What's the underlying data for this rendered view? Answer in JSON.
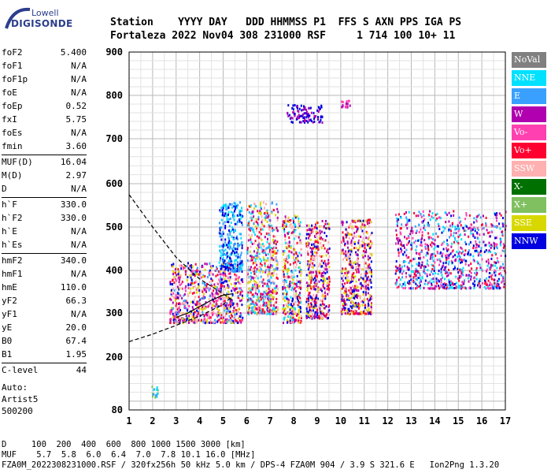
{
  "logo": {
    "line1": "Lowell",
    "line2": "DIGISONDE"
  },
  "header": {
    "line1": "Station    YYYY DAY   DDD HHMMSS P1  FFS S AXN PPS IGA PS",
    "line2": "Fortaleza 2022 Nov04 308 231000 RSF     1 714 100 10+ 11"
  },
  "params": [
    {
      "label": "foF2",
      "value": "5.400"
    },
    {
      "label": "foF1",
      "value": "N/A"
    },
    {
      "label": "foF1p",
      "value": "N/A"
    },
    {
      "label": "foE",
      "value": "N/A"
    },
    {
      "label": "foEp",
      "value": "0.52"
    },
    {
      "label": "fxI",
      "value": "5.75"
    },
    {
      "label": "foEs",
      "value": "N/A"
    },
    {
      "label": "fmin",
      "value": "3.60"
    },
    {
      "label": "MUF(D)",
      "value": "16.04"
    },
    {
      "label": "M(D)",
      "value": "2.97"
    },
    {
      "label": "D",
      "value": "N/A"
    },
    {
      "label": "h`F",
      "value": "330.0"
    },
    {
      "label": "h`F2",
      "value": "330.0"
    },
    {
      "label": "h`E",
      "value": "N/A"
    },
    {
      "label": "h`Es",
      "value": "N/A"
    },
    {
      "label": "hmF2",
      "value": "340.0"
    },
    {
      "label": "hmF1",
      "value": "N/A"
    },
    {
      "label": "hmE",
      "value": "110.0"
    },
    {
      "label": "yF2",
      "value": "66.3"
    },
    {
      "label": "yF1",
      "value": "N/A"
    },
    {
      "label": "yE",
      "value": "20.0"
    },
    {
      "label": "B0",
      "value": "67.4"
    },
    {
      "label": "B1",
      "value": "1.95"
    },
    {
      "label": "C-level",
      "value": "44"
    }
  ],
  "auto": {
    "line1": "Auto:",
    "line2": "Artist5",
    "line3": "500200"
  },
  "legend": [
    {
      "label": "NoVal",
      "color": "#808080"
    },
    {
      "label": "NNE",
      "color": "#00e0ff"
    },
    {
      "label": "E",
      "color": "#3aa0ff"
    },
    {
      "label": "W",
      "color": "#b000b0"
    },
    {
      "label": "Vo-",
      "color": "#ff40b0"
    },
    {
      "label": "Vo+",
      "color": "#ff0030"
    },
    {
      "label": "SSW",
      "color": "#ffb0b0"
    },
    {
      "label": "X-",
      "color": "#007000"
    },
    {
      "label": "X+",
      "color": "#80c060"
    },
    {
      "label": "SSE",
      "color": "#d8d800"
    },
    {
      "label": "NNW",
      "color": "#0000e0"
    }
  ],
  "footer": {
    "line1": "D     100  200  400  600  800 1000 1500 3000 [km]",
    "line2": "MUF    5.7  5.8  6.0  6.4  7.0  7.8 10.1 16.0 [MHz]",
    "line3": "FZA0M_2022308231000.RSF / 320fx256h 50 kHz 5.0 km / DPS-4 FZA0M 904 / 3.9 S 321.6 E   Ion2Png 1.3.20"
  },
  "chart_data": {
    "type": "scatter",
    "xlim": [
      1,
      17
    ],
    "ylim": [
      80,
      900
    ],
    "x_ticks": [
      "1",
      "2",
      "3",
      "4",
      "5",
      "6",
      "7",
      "8",
      "9",
      "10",
      "11",
      "12",
      "13",
      "14",
      "15",
      "16",
      "17"
    ],
    "y_ticks": [
      "80",
      "200",
      "300",
      "400",
      "500",
      "600",
      "700",
      "800",
      "900"
    ],
    "grid": true,
    "echo_clusters": [
      {
        "x_range": [
          1.9,
          2.2
        ],
        "y_range": [
          110,
          140
        ],
        "colors": [
          "#00e0ff",
          "#3aa0ff",
          "#80c060"
        ]
      },
      {
        "x_range": [
          2.7,
          5.8
        ],
        "y_range": [
          280,
          420
        ],
        "colors": [
          "#d8d800",
          "#ff0030",
          "#b000b0",
          "#ff40b0",
          "#3aa0ff",
          "#0000e0",
          "#ffb0b0"
        ]
      },
      {
        "x_range": [
          4.8,
          5.8
        ],
        "y_range": [
          400,
          560
        ],
        "colors": [
          "#3aa0ff",
          "#00e0ff",
          "#0000e0"
        ]
      },
      {
        "x_range": [
          6.0,
          7.3
        ],
        "y_range": [
          300,
          560
        ],
        "colors": [
          "#d8d800",
          "#3aa0ff",
          "#00e0ff",
          "#ff0030",
          "#b000b0",
          "#ffb0b0"
        ]
      },
      {
        "x_range": [
          7.5,
          8.3
        ],
        "y_range": [
          280,
          530
        ],
        "colors": [
          "#d8d800",
          "#ff0030",
          "#0000e0",
          "#b000b0",
          "#00e0ff",
          "#ffb0b0"
        ]
      },
      {
        "x_range": [
          8.5,
          9.5
        ],
        "y_range": [
          290,
          520
        ],
        "colors": [
          "#d8d800",
          "#ff0030",
          "#0000e0",
          "#b000b0",
          "#ffb0b0"
        ]
      },
      {
        "x_range": [
          10.0,
          11.3
        ],
        "y_range": [
          300,
          520
        ],
        "colors": [
          "#0000e0",
          "#b000b0",
          "#d8d800",
          "#ff0030",
          "#ffb0b0"
        ]
      },
      {
        "x_range": [
          12.3,
          17.0
        ],
        "y_range": [
          360,
          540
        ],
        "colors": [
          "#b000b0",
          "#0000e0",
          "#ff0030",
          "#3aa0ff",
          "#ff40b0",
          "#00e0ff"
        ]
      },
      {
        "x_range": [
          7.7,
          9.2
        ],
        "y_range": [
          740,
          780
        ],
        "colors": [
          "#0000e0",
          "#b000b0"
        ]
      },
      {
        "x_range": [
          10.0,
          10.4
        ],
        "y_range": [
          775,
          790
        ],
        "colors": [
          "#ff40b0",
          "#b000b0"
        ]
      }
    ],
    "traces": [
      {
        "name": "model_upper",
        "style": "dashed",
        "x": [
          1.0,
          2.0,
          3.0,
          4.0,
          5.0,
          5.4
        ],
        "y": [
          575,
          500,
          430,
          380,
          345,
          330
        ]
      },
      {
        "name": "model_lower",
        "style": "dashed",
        "x": [
          1.0,
          2.0,
          3.0,
          4.0,
          5.0,
          5.4
        ],
        "y": [
          235,
          252,
          272,
          293,
          320,
          340
        ]
      },
      {
        "name": "profile",
        "style": "solid",
        "x": [
          3.0,
          3.5,
          4.0,
          4.5,
          5.0,
          5.4
        ],
        "y": [
          290,
          300,
          315,
          330,
          342,
          345
        ]
      }
    ]
  }
}
